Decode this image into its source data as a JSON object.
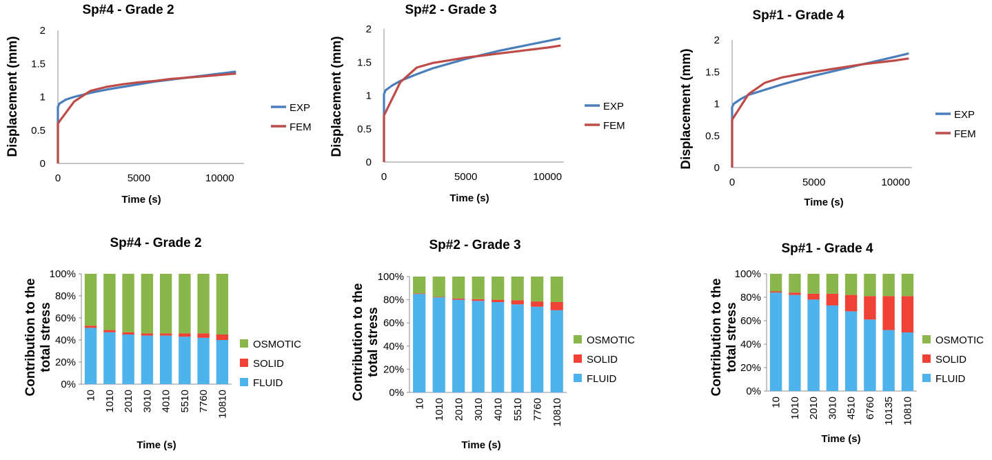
{
  "chart_data": [
    {
      "type": "line",
      "title": "Sp#4 - Grade 2",
      "xlabel": "Time (s)",
      "ylabel": "Displacement (mm)",
      "xlim": [
        0,
        11500
      ],
      "ylim": [
        0,
        2
      ],
      "x_ticks": [
        0,
        5000,
        10000
      ],
      "y_ticks": [
        0,
        0.5,
        1,
        1.5,
        2
      ],
      "x_tick_labels": [
        "0",
        "5000",
        "10000"
      ],
      "y_tick_labels": [
        "0",
        "0.5",
        "1",
        "1.5",
        "2"
      ],
      "legend": [
        "EXP",
        "FEM"
      ],
      "series": [
        {
          "name": "EXP",
          "color": "#4a7ebb",
          "x": [
            0,
            0,
            100,
            500,
            1000,
            2000,
            3000,
            4000,
            5000,
            6000,
            7000,
            8000,
            9000,
            10000,
            11000
          ],
          "y": [
            0,
            0.85,
            0.9,
            0.96,
            1.0,
            1.06,
            1.11,
            1.15,
            1.19,
            1.23,
            1.26,
            1.29,
            1.32,
            1.35,
            1.38
          ]
        },
        {
          "name": "FEM",
          "color": "#be4b48",
          "x": [
            0,
            0,
            1000,
            2000,
            3000,
            4000,
            5000,
            6000,
            7000,
            8000,
            9000,
            10000,
            11000
          ],
          "y": [
            0,
            0.6,
            0.93,
            1.09,
            1.15,
            1.19,
            1.22,
            1.24,
            1.27,
            1.29,
            1.31,
            1.33,
            1.35
          ]
        }
      ]
    },
    {
      "type": "line",
      "title": "Sp#2 - Grade 3",
      "xlabel": "Time (s)",
      "ylabel": "Displacement (mm)",
      "xlim": [
        0,
        11000
      ],
      "ylim": [
        0,
        2
      ],
      "x_ticks": [
        0,
        5000,
        10000
      ],
      "y_ticks": [
        0,
        0.5,
        1,
        1.5,
        2
      ],
      "x_tick_labels": [
        "0",
        "5000",
        "10000"
      ],
      "y_tick_labels": [
        "0",
        "0.5",
        "1",
        "1.5",
        "2"
      ],
      "legend": [
        "EXP",
        "FEM"
      ],
      "series": [
        {
          "name": "EXP",
          "color": "#4a7ebb",
          "x": [
            0,
            0,
            100,
            500,
            1000,
            2000,
            3000,
            4000,
            5000,
            6000,
            7000,
            8000,
            9000,
            10000,
            10800
          ],
          "y": [
            0,
            1.02,
            1.08,
            1.15,
            1.22,
            1.32,
            1.41,
            1.48,
            1.55,
            1.61,
            1.67,
            1.72,
            1.77,
            1.82,
            1.86
          ]
        },
        {
          "name": "FEM",
          "color": "#be4b48",
          "x": [
            0,
            0,
            1000,
            2000,
            3000,
            4000,
            5000,
            6000,
            7000,
            8000,
            9000,
            10000,
            10800
          ],
          "y": [
            0,
            0.7,
            1.2,
            1.42,
            1.49,
            1.53,
            1.57,
            1.6,
            1.63,
            1.66,
            1.69,
            1.72,
            1.75
          ]
        }
      ]
    },
    {
      "type": "line",
      "title": "Sp#1 - Grade 4",
      "xlabel": "Time  (s)",
      "ylabel": "Displacement (mm)",
      "xlim": [
        0,
        11000
      ],
      "ylim": [
        0,
        2
      ],
      "x_ticks": [
        0,
        5000,
        10000
      ],
      "y_ticks": [
        0,
        0.5,
        1,
        1.5,
        2
      ],
      "x_tick_labels": [
        "0",
        "5000",
        "10000"
      ],
      "y_tick_labels": [
        "0",
        "0.5",
        "1",
        "1.5",
        "2"
      ],
      "legend": [
        "EXP",
        "FEM"
      ],
      "series": [
        {
          "name": "EXP",
          "color": "#4a7ebb",
          "x": [
            0,
            0,
            100,
            500,
            1000,
            2000,
            3000,
            4000,
            5000,
            6000,
            7000,
            8000,
            9000,
            10000,
            10800
          ],
          "y": [
            0,
            0.95,
            1.0,
            1.07,
            1.14,
            1.22,
            1.3,
            1.37,
            1.44,
            1.5,
            1.56,
            1.62,
            1.68,
            1.74,
            1.79
          ]
        },
        {
          "name": "FEM",
          "color": "#be4b48",
          "x": [
            0,
            0,
            1000,
            2000,
            3000,
            4000,
            5000,
            6000,
            7000,
            8000,
            9000,
            10000,
            10800
          ],
          "y": [
            0,
            0.75,
            1.15,
            1.33,
            1.41,
            1.46,
            1.5,
            1.54,
            1.58,
            1.62,
            1.65,
            1.68,
            1.71
          ]
        }
      ]
    },
    {
      "type": "bar",
      "stacked": "percent",
      "title": "Sp#4 - Grade 2",
      "xlabel": "Time (s)",
      "ylabel": [
        "Contribution to the",
        "total stress"
      ],
      "ylim": [
        0,
        100
      ],
      "y_tick_labels": [
        "0%",
        "20%",
        "40%",
        "60%",
        "80%",
        "100%"
      ],
      "categories": [
        "10",
        "1010",
        "2010",
        "3010",
        "4010",
        "5510",
        "7760",
        "10810"
      ],
      "series": [
        {
          "name": "FLUID",
          "color": "#4db3ea",
          "values": [
            51,
            47,
            45,
            44,
            44,
            43,
            42,
            40
          ]
        },
        {
          "name": "SOLID",
          "color": "#ef4136",
          "values": [
            2,
            2,
            2,
            2,
            2,
            3,
            4,
            5
          ]
        },
        {
          "name": "OSMOTIC",
          "color": "#8ab64b",
          "values": [
            47,
            51,
            53,
            54,
            54,
            54,
            54,
            55
          ]
        }
      ]
    },
    {
      "type": "bar",
      "stacked": "percent",
      "title": "Sp#2 - Grade 3",
      "xlabel": "Time (s)",
      "ylabel": [
        "Contribution to the",
        "total stress"
      ],
      "ylim": [
        0,
        100
      ],
      "y_tick_labels": [
        "0%",
        "20%",
        "40%",
        "60%",
        "80%",
        "100%"
      ],
      "categories": [
        "10",
        "1010",
        "2010",
        "3010",
        "4010",
        "5510",
        "7760",
        "10810"
      ],
      "series": [
        {
          "name": "FLUID",
          "color": "#4db3ea",
          "values": [
            85,
            82,
            80,
            79,
            78,
            76,
            74,
            71
          ]
        },
        {
          "name": "SOLID",
          "color": "#ef4136",
          "values": [
            0.5,
            0.5,
            1,
            1.5,
            2,
            3.5,
            4.5,
            7
          ]
        },
        {
          "name": "OSMOTIC",
          "color": "#8ab64b",
          "values": [
            14.5,
            17.5,
            19,
            19.5,
            20,
            20.5,
            21.5,
            22
          ]
        }
      ]
    },
    {
      "type": "bar",
      "stacked": "percent",
      "title": "Sp#1 - Grade 4",
      "xlabel": "Time (s)",
      "ylabel": [
        "Contribution to the",
        "total stress"
      ],
      "ylim": [
        0,
        100
      ],
      "y_tick_labels": [
        "0%",
        "20%",
        "40%",
        "60%",
        "80%",
        "100%"
      ],
      "categories": [
        "10",
        "1010",
        "2010",
        "3010",
        "4510",
        "6760",
        "10135",
        "10810"
      ],
      "series": [
        {
          "name": "FLUID",
          "color": "#4db3ea",
          "values": [
            84,
            82,
            78,
            73,
            68,
            61,
            52,
            50
          ]
        },
        {
          "name": "SOLID",
          "color": "#ef4136",
          "values": [
            1,
            2,
            5,
            10,
            14,
            20,
            29,
            31
          ]
        },
        {
          "name": "OSMOTIC",
          "color": "#8ab64b",
          "values": [
            15,
            16,
            17,
            17,
            18,
            19,
            19,
            19
          ]
        }
      ]
    }
  ]
}
